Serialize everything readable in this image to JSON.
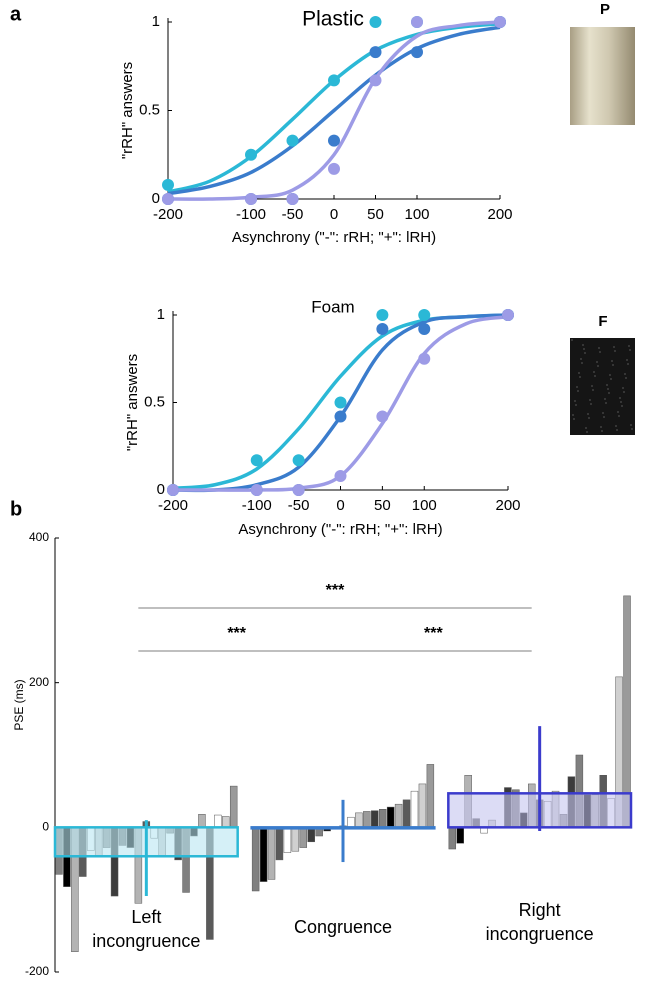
{
  "chart_data": [
    {
      "type": "psychometric",
      "panel_label": "a",
      "title": "Plastic",
      "image_label": "P",
      "xlabel": "Asynchrony (\"-\": rRH; \"+\": lRH)",
      "ylabel": "\"rRH\" answers",
      "x": [
        -200,
        -100,
        -50,
        0,
        50,
        100,
        200
      ],
      "xlim": [
        -200,
        200
      ],
      "xticks": [
        -200,
        -100,
        -50,
        0,
        50,
        100,
        200
      ],
      "ylim": [
        0,
        1
      ],
      "yticks": [
        0,
        0.5,
        1
      ],
      "fit_x": [
        -200,
        -150,
        -100,
        -50,
        0,
        50,
        100,
        150,
        200
      ],
      "series": [
        {
          "color": "#2bb8d6",
          "values": [
            0.08,
            0.25,
            0.33,
            0.67,
            1,
            1,
            1
          ],
          "fit": [
            0.04,
            0.1,
            0.24,
            0.45,
            0.67,
            0.84,
            0.93,
            0.97,
            0.99
          ]
        },
        {
          "color": "#3a7ccc",
          "values": [
            0,
            0,
            0,
            0.33,
            0.83,
            0.83,
            1
          ],
          "fit": [
            0.03,
            0.07,
            0.15,
            0.3,
            0.5,
            0.7,
            0.85,
            0.93,
            0.97
          ]
        },
        {
          "color": "#9d9be6",
          "values": [
            0,
            0,
            0,
            0.17,
            0.67,
            1,
            1
          ],
          "fit": [
            0,
            0,
            0.01,
            0.05,
            0.25,
            0.68,
            0.92,
            0.98,
            1
          ]
        }
      ]
    },
    {
      "type": "psychometric",
      "title": "Foam",
      "image_label": "F",
      "xlabel": "Asynchrony (\"-\": rRH; \"+\": lRH)",
      "ylabel": "\"rRH\" answers",
      "x": [
        -200,
        -100,
        -50,
        0,
        50,
        100,
        200
      ],
      "xlim": [
        -200,
        200
      ],
      "xticks": [
        -200,
        -100,
        -50,
        0,
        50,
        100,
        200
      ],
      "ylim": [
        0,
        1
      ],
      "yticks": [
        0,
        0.5,
        1
      ],
      "fit_x": [
        -200,
        -150,
        -100,
        -50,
        0,
        50,
        100,
        150,
        200
      ],
      "series": [
        {
          "color": "#2bb8d6",
          "values": [
            0,
            0.17,
            0.17,
            0.5,
            1,
            1,
            1
          ],
          "fit": [
            0.01,
            0.03,
            0.12,
            0.35,
            0.65,
            0.88,
            0.97,
            0.99,
            1
          ]
        },
        {
          "color": "#3a7ccc",
          "values": [
            0,
            0,
            0,
            0.42,
            0.92,
            0.92,
            1
          ],
          "fit": [
            0,
            0,
            0.03,
            0.13,
            0.42,
            0.8,
            0.96,
            0.99,
            1
          ]
        },
        {
          "color": "#9d9be6",
          "values": [
            0,
            0,
            0,
            0.08,
            0.42,
            0.75,
            1
          ],
          "fit": [
            0,
            0,
            0,
            0.01,
            0.08,
            0.38,
            0.78,
            0.95,
            0.99
          ]
        }
      ]
    },
    {
      "type": "groupbar",
      "panel_label": "b",
      "ylabel": "PSE (ms)",
      "ylim": [
        -200,
        400
      ],
      "yticks": [
        -200,
        0,
        200,
        400
      ],
      "bar_palette": [
        "#808080",
        "#000000",
        "#b3b3b3",
        "#5a5a5a",
        "#ffffff",
        "#d0d0d0",
        "#9a9a9a",
        "#3c3c3c"
      ],
      "groups": [
        {
          "name": "Left incongruence",
          "color": "#2bb8d6",
          "fill": "#b9e6f1",
          "mean": -40,
          "ci": [
            -95,
            10
          ],
          "values": [
            -65,
            -82,
            -172,
            -68,
            -32,
            -40,
            -28,
            -95,
            -25,
            -28,
            -105,
            8,
            -15,
            -40,
            -8,
            -45,
            -90,
            -12,
            18,
            -155,
            17,
            15,
            57
          ]
        },
        {
          "name": "Congruence",
          "color": "#3a7ccc",
          "fill": "#b6cdee",
          "mean": 0,
          "ci": [
            -48,
            38
          ],
          "values": [
            -88,
            -75,
            -72,
            -45,
            -35,
            -33,
            -28,
            -20,
            -12,
            -5,
            0,
            2,
            14,
            20,
            22,
            23,
            25,
            28,
            32,
            38,
            50,
            60,
            87
          ]
        },
        {
          "name": "Right incongruence",
          "color": "#3b3bcc",
          "fill": "#c4c4ef",
          "mean": 47,
          "ci": [
            -5,
            140
          ],
          "values": [
            -30,
            -22,
            72,
            12,
            -8,
            10,
            0,
            55,
            52,
            20,
            60,
            38,
            36,
            50,
            18,
            70,
            100,
            45,
            45,
            72,
            40,
            208,
            320
          ]
        }
      ],
      "comparisons": [
        {
          "label": "***",
          "from": "Left incongruence",
          "to": "Right incongruence"
        },
        {
          "label": "***",
          "from": "Left incongruence",
          "to": "Congruence"
        },
        {
          "label": "***",
          "from": "Congruence",
          "to": "Right incongruence"
        }
      ]
    }
  ]
}
